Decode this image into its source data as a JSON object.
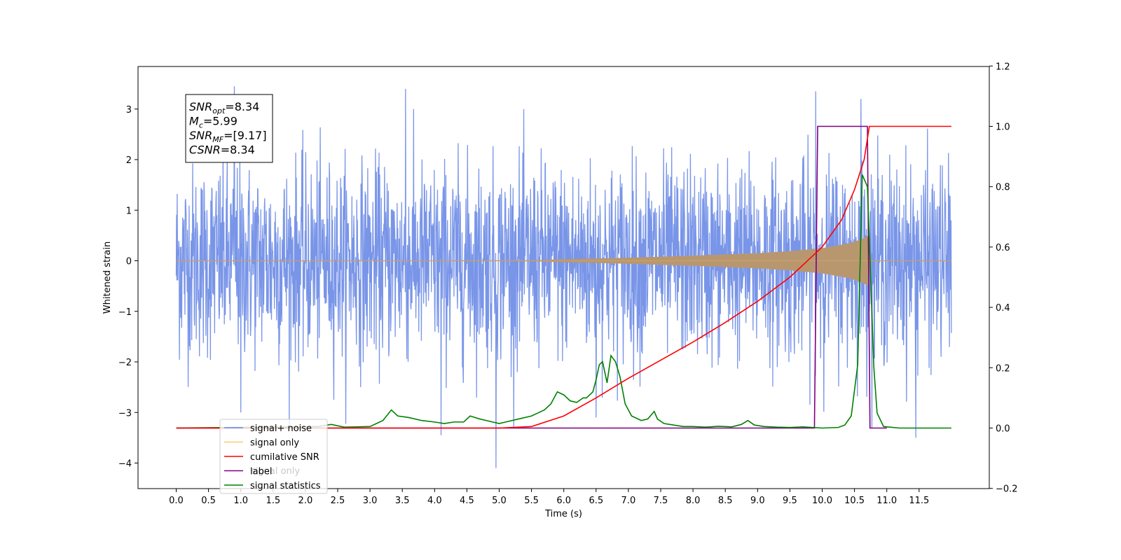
{
  "chart_data": {
    "type": "line",
    "xlabel": "Time (s)",
    "ylabel_left": "Whitened strain",
    "ylim_left": [
      -4.5,
      3.8
    ],
    "ylim_right": [
      -0.2,
      1.2
    ],
    "xlim": [
      -0.6,
      12.5
    ],
    "xticks": [
      0.0,
      0.5,
      1.0,
      1.5,
      2.0,
      2.5,
      3.0,
      3.5,
      4.0,
      4.5,
      5.0,
      5.5,
      6.0,
      6.5,
      7.0,
      7.5,
      8.0,
      8.5,
      9.0,
      9.5,
      10.0,
      10.5,
      11.0,
      11.5
    ],
    "xtick_labels": [
      "0.0",
      "0.5",
      "1.0",
      "1.5",
      "2.0",
      "2.5",
      "3.0",
      "3.5",
      "4.0",
      "4.5",
      "5.0",
      "5.5",
      "6.0",
      "6.5",
      "7.0",
      "7.5",
      "8.0",
      "8.5",
      "9.0",
      "9.5",
      "10.0",
      "10.5",
      "11.0",
      "11.5"
    ],
    "yticks_left": [
      -4,
      -3,
      -2,
      -1,
      0,
      1,
      2,
      3
    ],
    "ytick_labels_left": [
      "−4",
      "−3",
      "−2",
      "−1",
      "0",
      "1",
      "2",
      "3"
    ],
    "yticks_right": [
      -0.2,
      0.0,
      0.2,
      0.4,
      0.6,
      0.8,
      1.0,
      1.2
    ],
    "ytick_labels_right": [
      "−0.2",
      "0.0",
      "0.2",
      "0.4",
      "0.6",
      "0.8",
      "1.0",
      "1.2"
    ],
    "grid": false,
    "legend_position": "lower-left",
    "series": [
      {
        "name": "signal+ noise",
        "axis": "left",
        "color": "#6a8ae6",
        "description": "white noise, std ~0.95, range about -4.1 to 3.5, t from 0 to 12",
        "x_range": [
          0,
          12
        ],
        "spikes": [
          [
            0.9,
            3.45
          ],
          [
            3.55,
            3.4
          ],
          [
            4.95,
            -4.1
          ],
          [
            9.9,
            3.35
          ],
          [
            10.6,
            3.2
          ],
          [
            11.45,
            -3.5
          ],
          [
            1.0,
            -3.0
          ],
          [
            4.1,
            -3.45
          ],
          [
            6.5,
            -3.1
          ]
        ]
      },
      {
        "name": "signal only",
        "axis": "left",
        "color": "#ffb347",
        "description": "chirp, zero before ~5.5s, amplitude grows to ~0.5 near 10.7s then stops",
        "amplitude_envelope": [
          [
            0,
            0.0
          ],
          [
            5.5,
            0.01
          ],
          [
            6.0,
            0.03
          ],
          [
            7.0,
            0.06
          ],
          [
            8.0,
            0.1
          ],
          [
            9.0,
            0.15
          ],
          [
            9.5,
            0.19
          ],
          [
            10.0,
            0.25
          ],
          [
            10.4,
            0.34
          ],
          [
            10.6,
            0.42
          ],
          [
            10.72,
            0.5
          ],
          [
            10.75,
            0.0
          ],
          [
            12,
            0.0
          ]
        ]
      },
      {
        "name": "cumilative SNR",
        "axis": "right",
        "color": "#ff0000",
        "x": [
          0.0,
          5.0,
          5.5,
          6.0,
          6.5,
          7.0,
          7.5,
          8.0,
          8.5,
          9.0,
          9.5,
          10.0,
          10.3,
          10.5,
          10.65,
          10.73,
          10.8,
          12.0
        ],
        "y": [
          0.0,
          0.0,
          0.005,
          0.04,
          0.1,
          0.165,
          0.225,
          0.285,
          0.35,
          0.42,
          0.5,
          0.6,
          0.69,
          0.79,
          0.89,
          1.0,
          1.0,
          1.0
        ]
      },
      {
        "name": "label",
        "axis": "right",
        "color": "#800080",
        "x": [
          0.0,
          9.88,
          9.93,
          10.7,
          10.74,
          11.0
        ],
        "y": [
          0.0,
          0.0,
          1.0,
          1.0,
          0.0,
          0.0
        ]
      },
      {
        "name": "signal statistics",
        "axis": "right",
        "color": "#008000",
        "x": [
          0.0,
          2.2,
          2.4,
          2.6,
          3.0,
          3.2,
          3.33,
          3.43,
          3.6,
          3.8,
          4.0,
          4.15,
          4.3,
          4.45,
          4.55,
          4.7,
          4.9,
          5.0,
          5.1,
          5.3,
          5.5,
          5.6,
          5.7,
          5.8,
          5.9,
          6.0,
          6.1,
          6.2,
          6.3,
          6.35,
          6.45,
          6.5,
          6.55,
          6.6,
          6.67,
          6.73,
          6.8,
          6.87,
          6.95,
          7.05,
          7.2,
          7.3,
          7.4,
          7.45,
          7.55,
          7.7,
          7.85,
          8.0,
          8.2,
          8.4,
          8.6,
          8.75,
          8.85,
          8.95,
          9.1,
          9.3,
          9.5,
          9.7,
          9.85,
          10.0,
          10.25,
          10.35,
          10.45,
          10.55,
          10.62,
          10.7,
          10.75,
          10.8,
          10.85,
          10.95,
          11.2,
          12.0
        ],
        "y": [
          0.0,
          0.005,
          0.012,
          0.003,
          0.005,
          0.025,
          0.06,
          0.04,
          0.035,
          0.025,
          0.02,
          0.015,
          0.02,
          0.02,
          0.04,
          0.03,
          0.02,
          0.015,
          0.02,
          0.03,
          0.04,
          0.05,
          0.06,
          0.08,
          0.12,
          0.11,
          0.09,
          0.085,
          0.1,
          0.1,
          0.12,
          0.16,
          0.21,
          0.22,
          0.15,
          0.24,
          0.22,
          0.17,
          0.08,
          0.04,
          0.025,
          0.03,
          0.055,
          0.03,
          0.015,
          0.01,
          0.005,
          0.005,
          0.003,
          0.006,
          0.004,
          0.012,
          0.025,
          0.01,
          0.005,
          0.003,
          0.002,
          0.004,
          0.002,
          0.0,
          0.002,
          0.01,
          0.04,
          0.21,
          0.84,
          0.8,
          0.5,
          0.2,
          0.05,
          0.005,
          0.0,
          0.0
        ]
      }
    ],
    "annotation_lines": [
      {
        "base": "SNR",
        "sub": "opt",
        "rest": "=8.34"
      },
      {
        "base": "M",
        "sub": "c",
        "rest": "=5.99"
      },
      {
        "base": "SNR",
        "sub": "MF",
        "rest": "=[9.17]"
      },
      {
        "base": "CSNR",
        "sub": "",
        "rest": "=8.34"
      }
    ],
    "legend_overlap_text": "signal only"
  }
}
